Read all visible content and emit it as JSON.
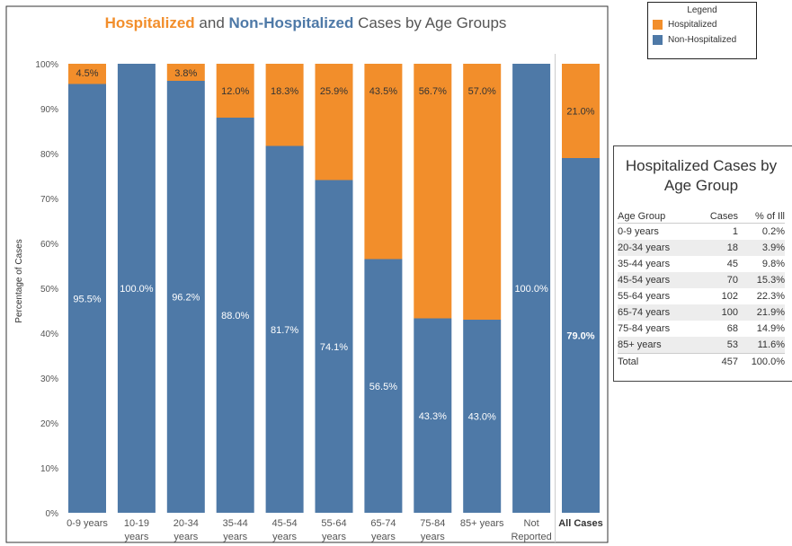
{
  "chart_data": {
    "type": "bar",
    "stacked": true,
    "title_parts": [
      {
        "text": "Hospitalized",
        "color": "#f28e2b",
        "bold": true
      },
      {
        "text": " and ",
        "color": "#555555",
        "bold": false
      },
      {
        "text": "Non-Hospitalized",
        "color": "#4e79a7",
        "bold": true
      },
      {
        "text": " Cases by Age Groups",
        "color": "#555555",
        "bold": false
      }
    ],
    "ylabel": "Percentage of Cases",
    "ylim": [
      0,
      100
    ],
    "yticks": [
      "0%",
      "10%",
      "20%",
      "30%",
      "40%",
      "50%",
      "60%",
      "70%",
      "80%",
      "90%",
      "100%"
    ],
    "grid": false,
    "categories": [
      [
        "0-9 years"
      ],
      [
        "10-19",
        "years"
      ],
      [
        "20-34",
        "years"
      ],
      [
        "35-44",
        "years"
      ],
      [
        "45-54",
        "years"
      ],
      [
        "55-64",
        "years"
      ],
      [
        "65-74",
        "years"
      ],
      [
        "75-84",
        "years"
      ],
      [
        "85+ years"
      ],
      [
        "Not",
        "Reported"
      ]
    ],
    "series": [
      {
        "name": "Non-Hospitalized",
        "color": "#4e79a7",
        "values": [
          95.5,
          100.0,
          96.2,
          88.0,
          81.7,
          74.1,
          56.5,
          43.3,
          43.0,
          100.0
        ],
        "labels": [
          "95.5%",
          "100.0%",
          "96.2%",
          "88.0%",
          "81.7%",
          "74.1%",
          "56.5%",
          "43.3%",
          "43.0%",
          "100.0%"
        ]
      },
      {
        "name": "Hospitalized",
        "color": "#f28e2b",
        "values": [
          4.5,
          0,
          3.8,
          12.0,
          18.3,
          25.9,
          43.5,
          56.7,
          57.0,
          0
        ],
        "labels": [
          "4.5%",
          "",
          "3.8%",
          "12.0%",
          "18.3%",
          "25.9%",
          "43.5%",
          "56.7%",
          "57.0%",
          ""
        ]
      }
    ],
    "summary": {
      "category": "All Cases",
      "non_hospitalized": 79.0,
      "non_hospitalized_label": "79.0%",
      "hospitalized": 21.0,
      "hospitalized_label": "21.0%"
    }
  },
  "legend": {
    "title": "Legend",
    "items": [
      {
        "label": "Hospitalized",
        "color": "#f28e2b"
      },
      {
        "label": "Non-Hospitalized",
        "color": "#4e79a7"
      }
    ]
  },
  "table": {
    "title_line1": "Hospitalized Cases by",
    "title_line2": "Age Group",
    "headers": [
      "Age Group",
      "Cases",
      "% of Ill"
    ],
    "rows": [
      [
        "0-9 years",
        "1",
        "0.2%"
      ],
      [
        "20-34 years",
        "18",
        "3.9%"
      ],
      [
        "35-44 years",
        "45",
        "9.8%"
      ],
      [
        "45-54 years",
        "70",
        "15.3%"
      ],
      [
        "55-64 years",
        "102",
        "22.3%"
      ],
      [
        "65-74 years",
        "100",
        "21.9%"
      ],
      [
        "75-84 years",
        "68",
        "14.9%"
      ],
      [
        "85+ years",
        "53",
        "11.6%"
      ]
    ],
    "total": [
      "Total",
      "457",
      "100.0%"
    ]
  }
}
